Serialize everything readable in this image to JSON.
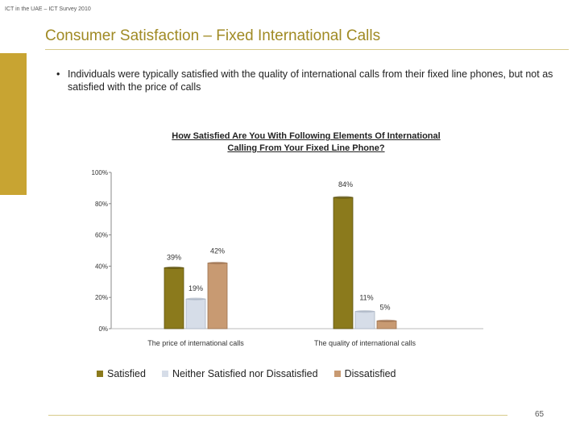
{
  "header": {
    "note": "ICT in the UAE – ICT Survey 2010"
  },
  "title": "Consumer Satisfaction – Fixed International Calls",
  "bullets": [
    "Individuals were typically satisfied with the quality of international calls from their fixed line phones, but not as satisfied with the price of calls"
  ],
  "chart_title_line1": "How Satisfied Are You With Following Elements Of International",
  "chart_title_line2": "Calling From Your Fixed Line Phone?",
  "colors": {
    "accent": "#c8a432",
    "satisfied": "#8b7a1c",
    "neutral": "#d6dde8",
    "dissatisfied": "#c89a72"
  },
  "chart_data": {
    "type": "bar",
    "title": "How Satisfied Are You With Following Elements Of International Calling From Your Fixed Line Phone?",
    "categories": [
      "The price of international calls",
      "The quality of international calls"
    ],
    "series": [
      {
        "name": "Satisfied",
        "values": [
          39,
          84
        ],
        "labels": [
          "39%",
          "84%"
        ]
      },
      {
        "name": "Neither Satisfied nor Dissatisfied",
        "values": [
          19,
          11
        ],
        "labels": [
          "19%",
          "11%"
        ]
      },
      {
        "name": "Dissatisfied",
        "values": [
          42,
          5
        ],
        "labels": [
          "42%",
          "5%"
        ]
      }
    ],
    "ylim": [
      0,
      100
    ],
    "yticks": [
      "0%",
      "20%",
      "40%",
      "60%",
      "80%",
      "100%"
    ],
    "legend_position": "bottom",
    "grid": false
  },
  "footer": {
    "page_number": "65"
  }
}
